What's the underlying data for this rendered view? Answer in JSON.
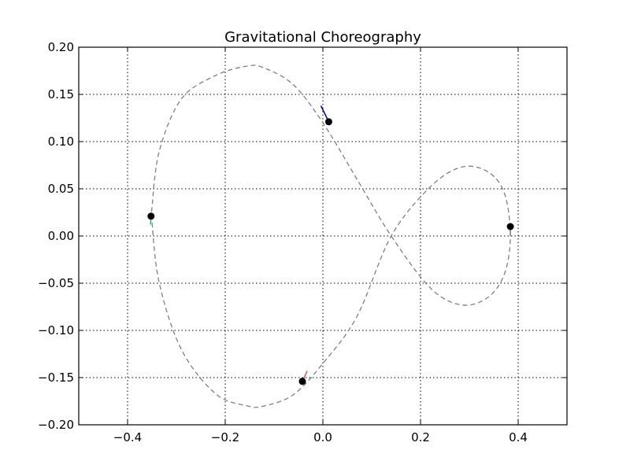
{
  "chart_data": {
    "type": "line",
    "title": "Gravitational Choreography",
    "xlabel": "",
    "ylabel": "",
    "xlim": [
      -0.5,
      0.5
    ],
    "ylim": [
      -0.2,
      0.2
    ],
    "xticks": [
      -0.4,
      -0.2,
      0.0,
      0.2,
      0.4
    ],
    "xtick_labels": [
      "−0.4",
      "−0.2",
      "0.0",
      "0.2",
      "0.4"
    ],
    "yticks": [
      -0.2,
      -0.15,
      -0.1,
      -0.05,
      0.0,
      0.05,
      0.1,
      0.15,
      0.2
    ],
    "ytick_labels": [
      "−0.20",
      "−0.15",
      "−0.10",
      "−0.05",
      "0.00",
      "0.05",
      "0.10",
      "0.15",
      "0.20"
    ],
    "grid": true,
    "orbit": {
      "style": "dashed",
      "color": "#808080",
      "x": [
        0.384,
        0.372,
        0.338,
        0.284,
        0.22,
        0.14,
        0.07,
        0.0,
        -0.06,
        -0.12,
        -0.155,
        -0.22,
        -0.29,
        -0.335,
        -0.35,
        -0.35,
        -0.335,
        -0.29,
        -0.22,
        -0.155,
        -0.12,
        -0.06,
        0.0,
        0.07,
        0.14,
        0.22,
        0.284,
        0.338,
        0.372,
        0.384
      ],
      "y": [
        0.0,
        0.045,
        0.068,
        0.073,
        0.052,
        0.0,
        -0.085,
        -0.135,
        -0.168,
        -0.18,
        -0.18,
        -0.167,
        -0.12,
        -0.05,
        0.015,
        0.03,
        0.09,
        0.145,
        0.17,
        0.18,
        0.178,
        0.16,
        0.12,
        0.06,
        0.0,
        -0.055,
        -0.073,
        -0.065,
        -0.04,
        0.0
      ]
    },
    "bodies": [
      {
        "x": 0.012,
        "y": 0.121,
        "trail_color": "#00008b",
        "trail": [
          [
            -0.004,
            0.138
          ],
          [
            0.012,
            0.121
          ]
        ]
      },
      {
        "x": -0.352,
        "y": 0.021,
        "trail_color": "#20b2aa",
        "trail": [
          [
            -0.353,
            0.012
          ],
          [
            -0.352,
            0.021
          ]
        ]
      },
      {
        "x": 0.384,
        "y": 0.01,
        "trail_color": "#808080",
        "trail": [
          [
            0.384,
            0.0
          ],
          [
            0.384,
            0.01
          ]
        ]
      },
      {
        "x": -0.042,
        "y": -0.154,
        "trail_color": "#cd5c5c",
        "trail": [
          [
            -0.032,
            -0.143
          ],
          [
            -0.042,
            -0.154
          ]
        ]
      }
    ]
  }
}
